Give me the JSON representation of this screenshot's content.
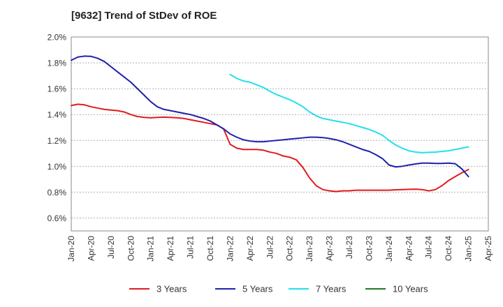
{
  "chart_data": {
    "type": "line",
    "title": "[9632]  Trend of StDev of ROE",
    "xlabel": "",
    "ylabel": "",
    "x_ticks": [
      "Jan-20",
      "Apr-20",
      "Jul-20",
      "Oct-20",
      "Jan-21",
      "Apr-21",
      "Jul-21",
      "Oct-21",
      "Jan-22",
      "Apr-22",
      "Jul-22",
      "Oct-22",
      "Jan-23",
      "Apr-23",
      "Jul-23",
      "Oct-23",
      "Jan-24",
      "Apr-24",
      "Jul-24",
      "Oct-24",
      "Jan-25",
      "Apr-25"
    ],
    "y_ticks": [
      "0.6%",
      "0.8%",
      "1.0%",
      "1.2%",
      "1.4%",
      "1.6%",
      "1.8%",
      "2.0%"
    ],
    "ylim": [
      0.5,
      2.0
    ],
    "grid": "horizontal dashed",
    "legend_position": "bottom",
    "series": [
      {
        "name": "3 Years",
        "color": "#e31a1c",
        "points": [
          [
            "Jan-20",
            1.47
          ],
          [
            "Feb-20",
            1.48
          ],
          [
            "Mar-20",
            1.475
          ],
          [
            "Apr-20",
            1.46
          ],
          [
            "May-20",
            1.45
          ],
          [
            "Jun-20",
            1.44
          ],
          [
            "Jul-20",
            1.435
          ],
          [
            "Aug-20",
            1.43
          ],
          [
            "Sep-20",
            1.42
          ],
          [
            "Oct-20",
            1.4
          ],
          [
            "Nov-20",
            1.385
          ],
          [
            "Dec-20",
            1.378
          ],
          [
            "Jan-21",
            1.375
          ],
          [
            "Feb-21",
            1.378
          ],
          [
            "Mar-21",
            1.38
          ],
          [
            "Apr-21",
            1.378
          ],
          [
            "May-21",
            1.375
          ],
          [
            "Jun-21",
            1.37
          ],
          [
            "Jul-21",
            1.36
          ],
          [
            "Aug-21",
            1.35
          ],
          [
            "Sep-21",
            1.34
          ],
          [
            "Oct-21",
            1.33
          ],
          [
            "Nov-21",
            1.32
          ],
          [
            "Dec-21",
            1.29
          ],
          [
            "Jan-22",
            1.17
          ],
          [
            "Feb-22",
            1.14
          ],
          [
            "Mar-22",
            1.13
          ],
          [
            "Apr-22",
            1.13
          ],
          [
            "May-22",
            1.13
          ],
          [
            "Jun-22",
            1.125
          ],
          [
            "Jul-22",
            1.11
          ],
          [
            "Aug-22",
            1.1
          ],
          [
            "Sep-22",
            1.08
          ],
          [
            "Oct-22",
            1.07
          ],
          [
            "Nov-22",
            1.05
          ],
          [
            "Dec-22",
            0.99
          ],
          [
            "Jan-23",
            0.91
          ],
          [
            "Feb-23",
            0.85
          ],
          [
            "Mar-23",
            0.82
          ],
          [
            "Apr-23",
            0.81
          ],
          [
            "May-23",
            0.805
          ],
          [
            "Jun-23",
            0.81
          ],
          [
            "Jul-23",
            0.81
          ],
          [
            "Aug-23",
            0.815
          ],
          [
            "Sep-23",
            0.815
          ],
          [
            "Oct-23",
            0.815
          ],
          [
            "Nov-23",
            0.815
          ],
          [
            "Dec-23",
            0.815
          ],
          [
            "Jan-24",
            0.815
          ],
          [
            "Feb-24",
            0.818
          ],
          [
            "Mar-24",
            0.82
          ],
          [
            "Apr-24",
            0.822
          ],
          [
            "May-24",
            0.823
          ],
          [
            "Jun-24",
            0.82
          ],
          [
            "Jul-24",
            0.81
          ],
          [
            "Aug-24",
            0.82
          ],
          [
            "Sep-24",
            0.85
          ],
          [
            "Oct-24",
            0.89
          ],
          [
            "Nov-24",
            0.92
          ],
          [
            "Dec-24",
            0.95
          ],
          [
            "Jan-25",
            0.975
          ]
        ]
      },
      {
        "name": "5 Years",
        "color": "#1e22aa",
        "points": [
          [
            "Jan-20",
            1.82
          ],
          [
            "Feb-20",
            1.845
          ],
          [
            "Mar-20",
            1.852
          ],
          [
            "Apr-20",
            1.85
          ],
          [
            "May-20",
            1.835
          ],
          [
            "Jun-20",
            1.81
          ],
          [
            "Jul-20",
            1.77
          ],
          [
            "Aug-20",
            1.73
          ],
          [
            "Sep-20",
            1.69
          ],
          [
            "Oct-20",
            1.65
          ],
          [
            "Nov-20",
            1.6
          ],
          [
            "Dec-20",
            1.55
          ],
          [
            "Jan-21",
            1.5
          ],
          [
            "Feb-21",
            1.46
          ],
          [
            "Mar-21",
            1.44
          ],
          [
            "Apr-21",
            1.43
          ],
          [
            "May-21",
            1.42
          ],
          [
            "Jun-21",
            1.41
          ],
          [
            "Jul-21",
            1.4
          ],
          [
            "Aug-21",
            1.385
          ],
          [
            "Sep-21",
            1.37
          ],
          [
            "Oct-21",
            1.35
          ],
          [
            "Nov-21",
            1.32
          ],
          [
            "Dec-21",
            1.29
          ],
          [
            "Jan-22",
            1.25
          ],
          [
            "Feb-22",
            1.225
          ],
          [
            "Mar-22",
            1.205
          ],
          [
            "Apr-22",
            1.195
          ],
          [
            "May-22",
            1.19
          ],
          [
            "Jun-22",
            1.19
          ],
          [
            "Jul-22",
            1.195
          ],
          [
            "Aug-22",
            1.2
          ],
          [
            "Sep-22",
            1.205
          ],
          [
            "Oct-22",
            1.21
          ],
          [
            "Nov-22",
            1.215
          ],
          [
            "Dec-22",
            1.22
          ],
          [
            "Jan-23",
            1.225
          ],
          [
            "Feb-23",
            1.225
          ],
          [
            "Mar-23",
            1.222
          ],
          [
            "Apr-23",
            1.215
          ],
          [
            "May-23",
            1.205
          ],
          [
            "Jun-23",
            1.19
          ],
          [
            "Jul-23",
            1.17
          ],
          [
            "Aug-23",
            1.15
          ],
          [
            "Sep-23",
            1.13
          ],
          [
            "Oct-23",
            1.115
          ],
          [
            "Nov-23",
            1.09
          ],
          [
            "Dec-23",
            1.06
          ],
          [
            "Jan-24",
            1.01
          ],
          [
            "Feb-24",
            0.995
          ],
          [
            "Mar-24",
            1.0
          ],
          [
            "Apr-24",
            1.01
          ],
          [
            "May-24",
            1.018
          ],
          [
            "Jun-24",
            1.025
          ],
          [
            "Jul-24",
            1.025
          ],
          [
            "Aug-24",
            1.022
          ],
          [
            "Sep-24",
            1.022
          ],
          [
            "Oct-24",
            1.025
          ],
          [
            "Nov-24",
            1.02
          ],
          [
            "Dec-24",
            0.98
          ],
          [
            "Jan-25",
            0.92
          ]
        ]
      },
      {
        "name": "7 Years",
        "color": "#22e0ee",
        "points": [
          [
            "Jan-22",
            1.71
          ],
          [
            "Feb-22",
            1.68
          ],
          [
            "Mar-22",
            1.66
          ],
          [
            "Apr-22",
            1.65
          ],
          [
            "May-22",
            1.63
          ],
          [
            "Jun-22",
            1.61
          ],
          [
            "Jul-22",
            1.58
          ],
          [
            "Aug-22",
            1.555
          ],
          [
            "Sep-22",
            1.535
          ],
          [
            "Oct-22",
            1.515
          ],
          [
            "Nov-22",
            1.49
          ],
          [
            "Dec-22",
            1.46
          ],
          [
            "Jan-23",
            1.42
          ],
          [
            "Feb-23",
            1.39
          ],
          [
            "Mar-23",
            1.37
          ],
          [
            "Apr-23",
            1.36
          ],
          [
            "May-23",
            1.35
          ],
          [
            "Jun-23",
            1.34
          ],
          [
            "Jul-23",
            1.33
          ],
          [
            "Aug-23",
            1.315
          ],
          [
            "Sep-23",
            1.3
          ],
          [
            "Oct-23",
            1.285
          ],
          [
            "Nov-23",
            1.265
          ],
          [
            "Dec-23",
            1.24
          ],
          [
            "Jan-24",
            1.2
          ],
          [
            "Feb-24",
            1.165
          ],
          [
            "Mar-24",
            1.14
          ],
          [
            "Apr-24",
            1.12
          ],
          [
            "May-24",
            1.11
          ],
          [
            "Jun-24",
            1.105
          ],
          [
            "Jul-24",
            1.108
          ],
          [
            "Aug-24",
            1.11
          ],
          [
            "Sep-24",
            1.115
          ],
          [
            "Oct-24",
            1.12
          ],
          [
            "Nov-24",
            1.13
          ],
          [
            "Dec-24",
            1.14
          ],
          [
            "Jan-25",
            1.15
          ]
        ]
      },
      {
        "name": "10 Years",
        "color": "#1f7a1f",
        "points": []
      }
    ]
  }
}
